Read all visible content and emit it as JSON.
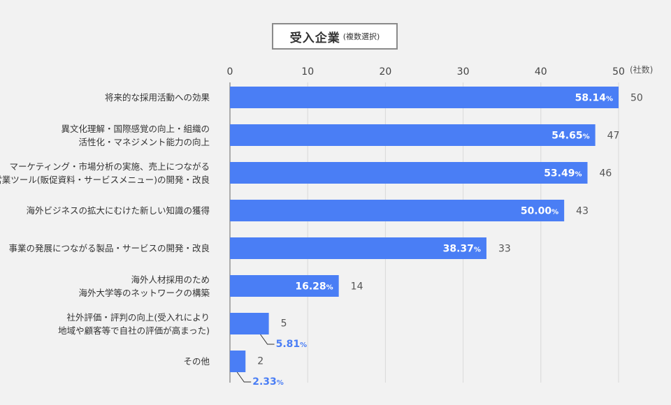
{
  "chart_data": {
    "type": "bar",
    "orientation": "horizontal",
    "title": "受入企業",
    "subtitle": "(複数選択)",
    "unit": "(社数)",
    "xlim": [
      0,
      50
    ],
    "ticks": [
      0,
      10,
      20,
      30,
      40,
      50
    ],
    "grid": true,
    "bar_color": "#4a7ef5",
    "categories": [
      {
        "lines": [
          "将来的な採用活動への効果"
        ],
        "count": 50,
        "pct": "58.14",
        "pct_sign": "%"
      },
      {
        "lines": [
          "異文化理解・国際感覚の向上・組織の",
          "活性化・マネジメント能力の向上"
        ],
        "count": 47,
        "pct": "54.65",
        "pct_sign": "%"
      },
      {
        "lines": [
          "マーケティング・市場分析の実施、売上につながる",
          "営業ツール(販促資料・サービスメニュー)の開発・改良"
        ],
        "count": 46,
        "pct": "53.49",
        "pct_sign": "%"
      },
      {
        "lines": [
          "海外ビジネスの拡大にむけた新しい知識の獲得"
        ],
        "count": 43,
        "pct": "50.00",
        "pct_sign": "%"
      },
      {
        "lines": [
          "事業の発展につながる製品・サービスの開発・改良"
        ],
        "count": 33,
        "pct": "38.37",
        "pct_sign": "%"
      },
      {
        "lines": [
          "海外人材採用のため",
          "海外大学等のネットワークの構築"
        ],
        "count": 14,
        "pct": "16.28",
        "pct_sign": "%"
      },
      {
        "lines": [
          "社外評価・評判の向上(受入れにより",
          "地域や顧客等で自社の評価が高まった)"
        ],
        "count": 5,
        "pct": "5.81",
        "pct_sign": "%"
      },
      {
        "lines": [
          "その他"
        ],
        "count": 2,
        "pct": "2.33",
        "pct_sign": "%"
      }
    ]
  }
}
